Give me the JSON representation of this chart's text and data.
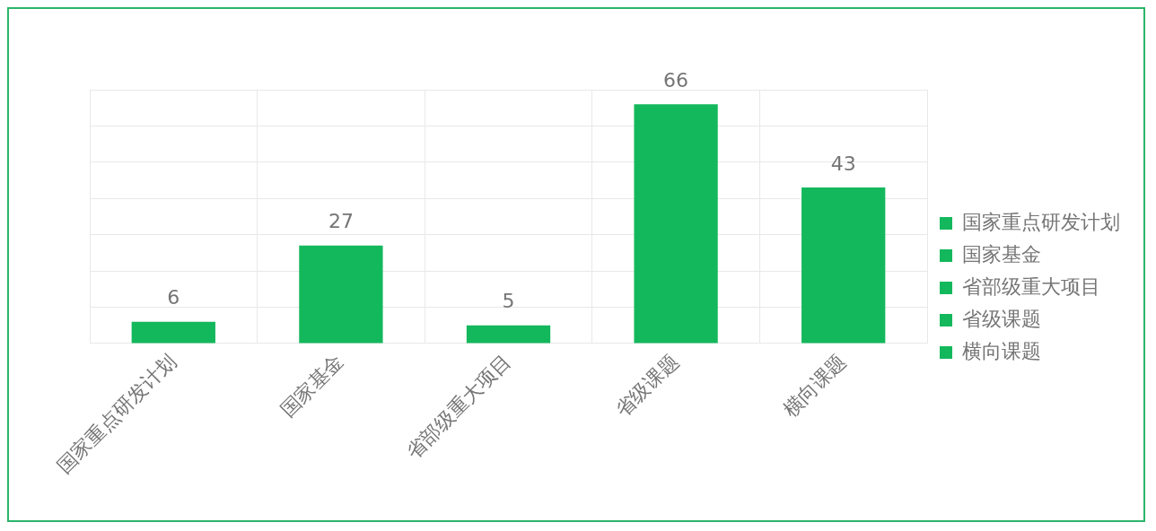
{
  "chart_data": {
    "type": "bar",
    "categories": [
      "国家重点研发计划",
      "国家基金",
      "省部级重大项目",
      "省级课题",
      "横向课题"
    ],
    "series": [
      {
        "name": "国家重点研发计划",
        "color": "#14b85c",
        "values": [
          6,
          null,
          null,
          null,
          null
        ]
      },
      {
        "name": "国家基金",
        "color": "#14b85c",
        "values": [
          null,
          27,
          null,
          null,
          null
        ]
      },
      {
        "name": "省部级重大项目",
        "color": "#14b85c",
        "values": [
          null,
          null,
          5,
          null,
          null
        ]
      },
      {
        "name": "省级课题",
        "color": "#14b85c",
        "values": [
          null,
          null,
          null,
          66,
          null
        ]
      },
      {
        "name": "横向课题",
        "color": "#14b85c",
        "values": [
          null,
          null,
          null,
          null,
          43
        ]
      }
    ],
    "ylim": [
      0,
      70
    ],
    "yticks": [
      {
        "value": 0,
        "label": null
      },
      {
        "value": 10,
        "label": null
      },
      {
        "value": 20,
        "label": null
      },
      {
        "value": 30,
        "label": null
      },
      {
        "value": 40,
        "label": null
      },
      {
        "value": 50,
        "label": null
      },
      {
        "value": 60,
        "label": null
      },
      {
        "value": 70,
        "label": null
      }
    ],
    "tick_labels": "x",
    "grid": true,
    "legend": "right",
    "data_labels": true
  }
}
